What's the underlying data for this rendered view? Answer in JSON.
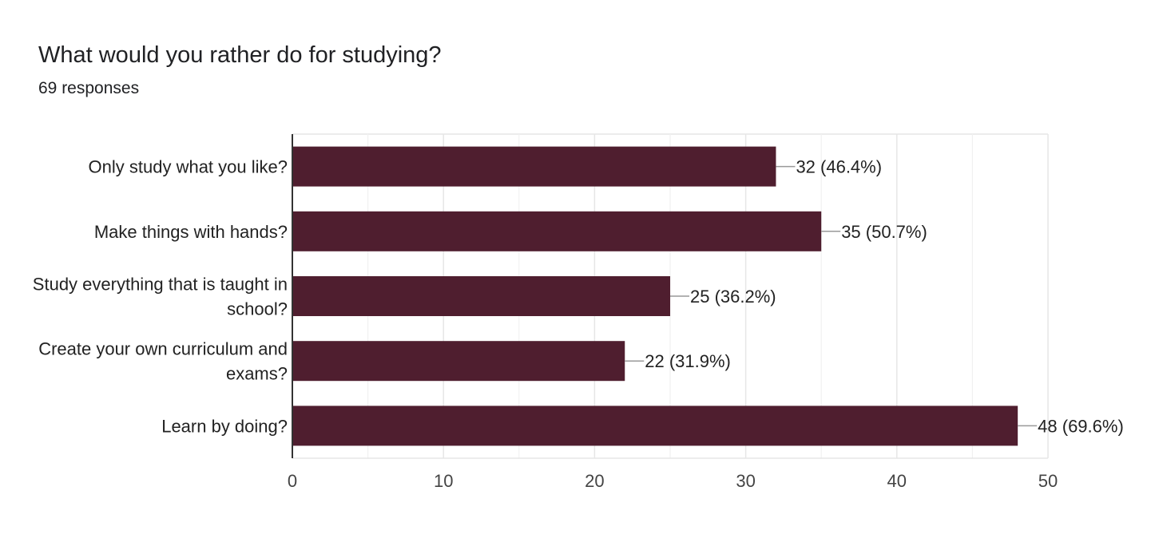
{
  "header": {
    "title": "What would you rather do for studying?",
    "responses": "69 responses"
  },
  "colors": {
    "bar": "#4f1e2f",
    "grid": "#e6e6e6",
    "axis": "#333333",
    "leader": "#999999"
  },
  "chart_data": {
    "type": "bar",
    "orientation": "horizontal",
    "categories": [
      "Only study what you like?",
      "Make things with hands?",
      "Study everything that is taught in school?",
      "Create your own curriculum and exams?",
      "Learn by doing?"
    ],
    "category_lines": [
      [
        "Only study what you like?"
      ],
      [
        "Make things with hands?"
      ],
      [
        "Study everything that is taught in",
        "school?"
      ],
      [
        "Create your own curriculum and",
        "exams?"
      ],
      [
        "Learn by doing?"
      ]
    ],
    "values": [
      32,
      35,
      25,
      22,
      48
    ],
    "data_labels": [
      "32 (46.4%)",
      "35 (50.7%)",
      "25 (36.2%)",
      "22 (31.9%)",
      "48 (69.6%)"
    ],
    "xlim": [
      0,
      50
    ],
    "xticks": [
      0,
      10,
      20,
      30,
      40,
      50
    ],
    "xtick_labels": [
      "0",
      "10",
      "20",
      "30",
      "40",
      "50"
    ],
    "grid": true,
    "legend": "none"
  }
}
